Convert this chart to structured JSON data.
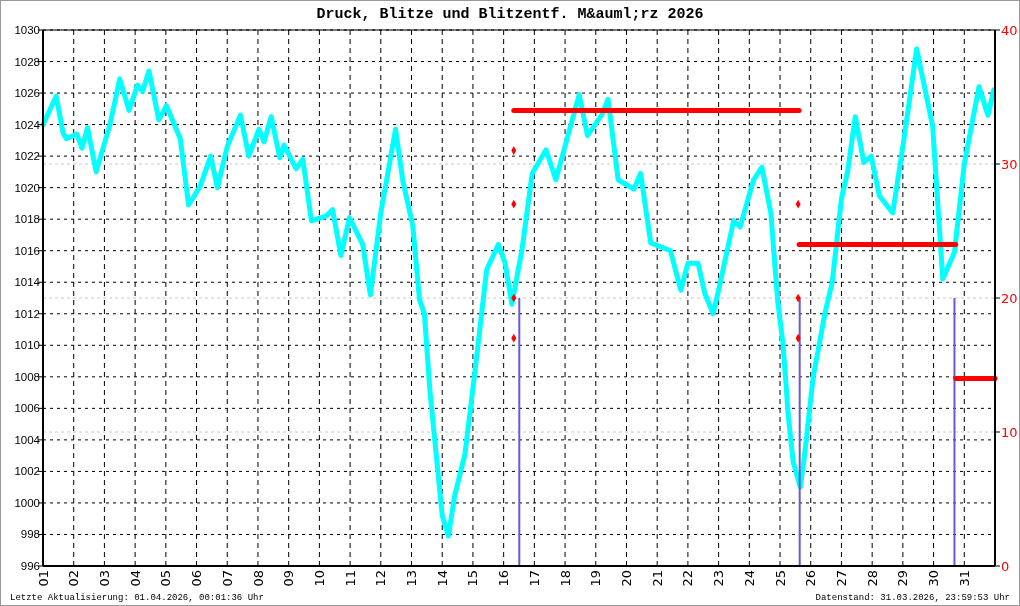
{
  "chart_data": {
    "type": "line",
    "title": "Druck, Blitze und Blitzentf. M&auml;rz 2026",
    "xlim": [
      1,
      32
    ],
    "xticks": [
      {
        "value": 1,
        "label": "01"
      },
      {
        "value": 2,
        "label": "02"
      },
      {
        "value": 3,
        "label": "03"
      },
      {
        "value": 4,
        "label": "04"
      },
      {
        "value": 5,
        "label": "05"
      },
      {
        "value": 6,
        "label": "06"
      },
      {
        "value": 7,
        "label": "07"
      },
      {
        "value": 8,
        "label": "08"
      },
      {
        "value": 9,
        "label": "09"
      },
      10,
      11,
      12,
      13,
      14,
      15,
      16,
      17,
      18,
      19,
      20,
      21,
      22,
      23,
      24,
      25,
      26,
      27,
      28,
      29,
      30,
      31
    ],
    "ylim": [
      996,
      1030
    ],
    "yticks": [
      996,
      998,
      1000,
      1002,
      1004,
      1006,
      1008,
      1010,
      1012,
      1014,
      1016,
      1018,
      1020,
      1022,
      1024,
      1026,
      1028,
      1030
    ],
    "y2lim": [
      0,
      40
    ],
    "y2ticks": [
      0,
      10,
      20,
      30,
      40
    ],
    "grid": true,
    "annotations": [
      "Letzte Aktualisierung: 01.04.2026, 00:01:36 Uhr",
      "Datenstand: 31.03.2026, 23:59:53 Uhr"
    ],
    "series": [
      {
        "color": "#00ffff",
        "x": [
          1.0,
          1.43,
          1.65,
          1.76,
          2.1,
          2.27,
          2.45,
          2.73,
          3.18,
          3.5,
          3.8,
          4.08,
          4.24,
          4.45,
          4.77,
          5.02,
          5.47,
          5.74,
          6.12,
          6.46,
          6.68,
          7.0,
          7.43,
          7.7,
          8.03,
          8.2,
          8.43,
          8.71,
          8.85,
          9.24,
          9.46,
          9.74,
          10.22,
          10.43,
          10.7,
          10.98,
          11.41,
          11.66,
          12.0,
          12.48,
          12.72,
          13.04,
          13.26,
          13.42,
          13.6,
          14.0,
          14.2,
          14.4,
          14.74,
          15.07,
          15.4,
          15.45,
          15.83,
          16.05,
          16.27,
          16.6,
          16.93,
          17.38,
          17.7,
          18.46,
          18.73,
          19.19,
          19.4,
          19.73,
          20.24,
          20.46,
          20.79,
          21.43,
          21.77,
          22.0,
          22.33,
          22.55,
          22.82,
          23.0,
          23.49,
          23.7,
          24.14,
          24.41,
          24.7,
          24.92,
          25.1,
          25.27,
          25.43,
          25.66,
          25.79,
          26.08,
          26.47,
          26.7,
          27.0,
          27.2,
          27.45,
          27.73,
          27.97,
          28.23,
          28.67,
          29.0,
          29.45,
          29.97,
          30.3,
          30.68,
          31.0,
          31.48,
          31.77,
          31.96
        ],
        "values": [
          1024.0,
          1025.8,
          1023.5,
          1023.1,
          1023.4,
          1022.5,
          1023.8,
          1021.0,
          1024.0,
          1026.9,
          1024.9,
          1026.5,
          1026.1,
          1027.4,
          1024.3,
          1025.2,
          1023.1,
          1018.9,
          1020.1,
          1022.0,
          1020.0,
          1022.6,
          1024.6,
          1022.0,
          1023.7,
          1022.9,
          1024.5,
          1021.9,
          1022.7,
          1021.2,
          1021.8,
          1017.9,
          1018.2,
          1018.6,
          1015.7,
          1018.1,
          1016.4,
          1013.2,
          1018.4,
          1023.7,
          1020.4,
          1017.6,
          1012.9,
          1012.0,
          1007.1,
          999.2,
          997.9,
          1000.4,
          1003.1,
          1008.4,
          1014.0,
          1014.8,
          1016.4,
          1015.2,
          1012.6,
          1016.1,
          1020.9,
          1022.4,
          1020.5,
          1025.9,
          1023.3,
          1024.6,
          1025.6,
          1020.5,
          1019.9,
          1020.9,
          1016.5,
          1016.0,
          1013.5,
          1015.2,
          1015.2,
          1013.3,
          1012.0,
          1013.5,
          1017.9,
          1017.5,
          1020.5,
          1021.3,
          1018.4,
          1012.9,
          1010.0,
          1005.5,
          1002.6,
          1001.0,
          1002.9,
          1008.0,
          1012.1,
          1014.0,
          1019.3,
          1021.0,
          1024.5,
          1021.6,
          1022.0,
          1019.5,
          1018.4,
          1022.6,
          1028.8,
          1023.9,
          1014.2,
          1015.9,
          1021.5,
          1026.4,
          1024.6,
          1026.2
        ]
      },
      {
        "type": "bar",
        "axis": "y2",
        "color": "#6a5acd",
        "x": [
          16.51,
          25.64,
          30.68
        ],
        "values": [
          20,
          20,
          20
        ]
      },
      {
        "type": "scatter",
        "axis": "y2",
        "color": "#ff0000",
        "marker": "diamond",
        "x": [
          16.33,
          16.33,
          16.33,
          16.33,
          25.59,
          25.59,
          25.59
        ],
        "values": [
          31,
          27,
          20,
          17,
          27,
          20,
          17
        ]
      },
      {
        "type": "line",
        "axis": "y2",
        "color": "#ff0000",
        "x": [
          16.33,
          25.62
        ],
        "values": [
          34,
          34
        ]
      },
      {
        "type": "line",
        "axis": "y2",
        "color": "#ff0000",
        "x": [
          25.62,
          30.72
        ],
        "values": [
          24,
          24
        ]
      },
      {
        "type": "line",
        "axis": "y2",
        "color": "#ff0000",
        "x": [
          30.72,
          32
        ],
        "values": [
          14,
          14
        ]
      }
    ]
  }
}
